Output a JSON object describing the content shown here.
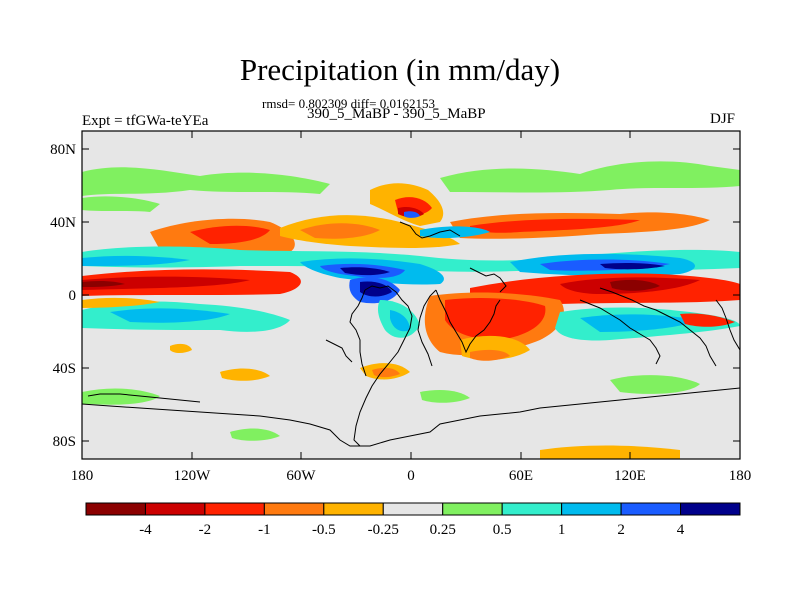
{
  "plot": {
    "title": "Precipitation (in mm/day)",
    "stats": "rmsd= 0.802309 diff= 0.0162153",
    "cases": "390_5_MaBP - 390_5_MaBP",
    "experiment": "Expt = tfGWa-teYEa",
    "season": "DJF",
    "x_ticks": [
      "180",
      "120W",
      "60W",
      "0",
      "60E",
      "120E",
      "180"
    ],
    "y_ticks": [
      "80N",
      "40N",
      "0",
      "40S",
      "80S"
    ]
  },
  "colorbar": {
    "labels": [
      "-4",
      "-2",
      "-1",
      "-0.5",
      "-0.25",
      "0.25",
      "0.5",
      "1",
      "2",
      "4"
    ],
    "colors": [
      "#8b0000",
      "#cc0000",
      "#ff2200",
      "#ff7a10",
      "#ffb300",
      "#e6e6e6",
      "#80f060",
      "#33eecc",
      "#00bbee",
      "#1a5cff",
      "#00008b"
    ]
  },
  "colors": {
    "background": "#e6e6e6",
    "coastline": "#000000"
  }
}
